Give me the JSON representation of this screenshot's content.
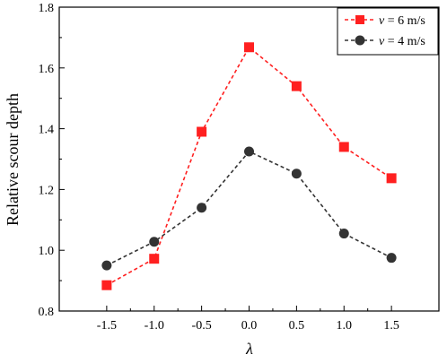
{
  "chart_data": {
    "type": "line",
    "xlabel": "λ",
    "ylabel": "Relative scour depth",
    "x": [
      -1.5,
      -1.0,
      -0.5,
      0.0,
      0.5,
      1.0,
      1.5
    ],
    "xticks": [
      "-1.5",
      "-1.0",
      "-0.5",
      "0.0",
      "0.5",
      "1.0",
      "1.5"
    ],
    "yticks": [
      "0.8",
      "1.0",
      "1.2",
      "1.4",
      "1.6",
      "1.8"
    ],
    "xlim": [
      -2.0,
      2.0
    ],
    "ylim": [
      0.8,
      1.8
    ],
    "grid": false,
    "legend_position": "top-right",
    "series": [
      {
        "name": "v = 6 m/s",
        "legend_var": "v",
        "legend_rest": " = 6 m/s",
        "color": "#ff2020",
        "marker": "square",
        "line": "dashed",
        "values": [
          0.885,
          0.972,
          1.39,
          1.668,
          1.54,
          1.34,
          1.237
        ]
      },
      {
        "name": "v = 4 m/s",
        "legend_var": "v",
        "legend_rest": " = 4 m/s",
        "color": "#333333",
        "marker": "circle",
        "line": "dashed",
        "values": [
          0.95,
          1.028,
          1.14,
          1.325,
          1.252,
          1.055,
          0.975
        ]
      }
    ]
  }
}
